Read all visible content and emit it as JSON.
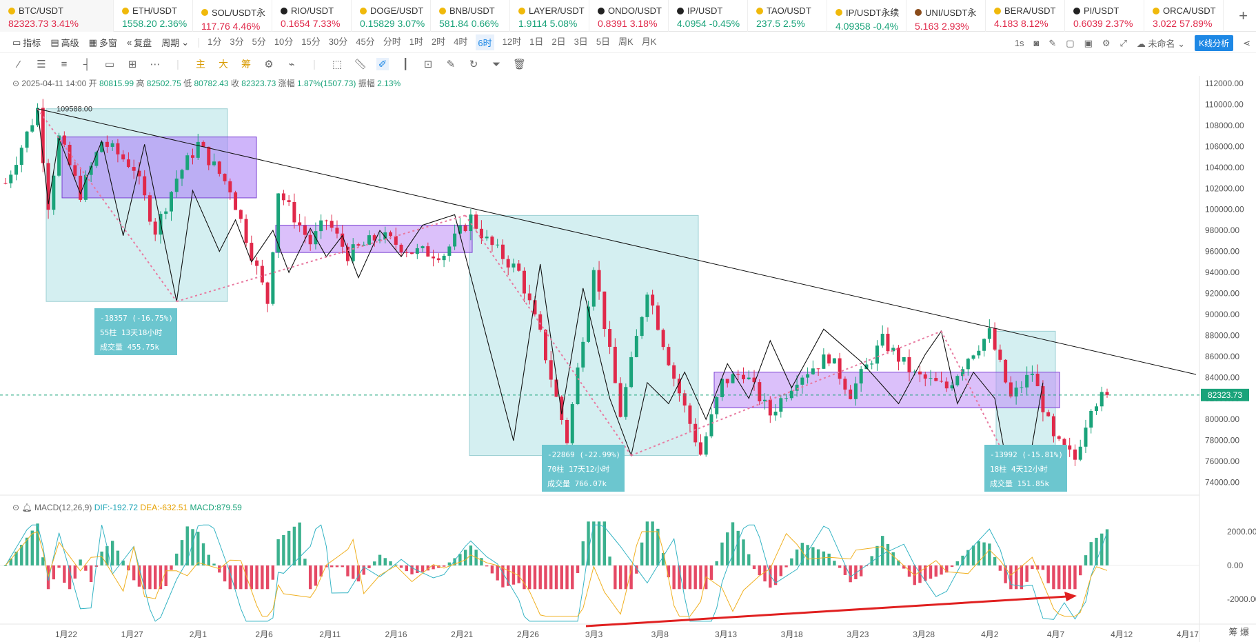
{
  "tickers": [
    {
      "symbol": "BTC/USDT",
      "price": "82323.73",
      "change": "3.41%",
      "dir": "down",
      "icon": "btc-icon",
      "active": true
    },
    {
      "symbol": "ETH/USDT",
      "price": "1558.20",
      "change": "2.36%",
      "dir": "up",
      "icon": "eth-icon"
    },
    {
      "symbol": "SOL/USDT永",
      "price": "117.76",
      "change": "4.46%",
      "dir": "down",
      "icon": "sol-icon"
    },
    {
      "symbol": "RIO/USDT",
      "price": "0.1654",
      "change": "7.33%",
      "dir": "down",
      "icon": "rio-icon"
    },
    {
      "symbol": "DOGE/USDT",
      "price": "0.15829",
      "change": "3.07%",
      "dir": "up",
      "icon": "doge-icon"
    },
    {
      "symbol": "BNB/USDT",
      "price": "581.84",
      "change": "0.66%",
      "dir": "up",
      "icon": "bnb-icon"
    },
    {
      "symbol": "LAYER/USDT",
      "price": "1.9114",
      "change": "5.08%",
      "dir": "up",
      "icon": "layer-icon"
    },
    {
      "symbol": "ONDO/USDT",
      "price": "0.8391",
      "change": "3.18%",
      "dir": "down",
      "icon": "ondo-icon"
    },
    {
      "symbol": "IP/USDT",
      "price": "4.0954",
      "change": "-0.45%",
      "dir": "up",
      "icon": "ip-icon"
    },
    {
      "symbol": "TAO/USDT",
      "price": "237.5",
      "change": "2.5%",
      "dir": "up",
      "icon": "tao-icon"
    },
    {
      "symbol": "IP/USDT永续",
      "price": "4.09358",
      "change": "-0.4%",
      "dir": "up",
      "icon": "ip-perp-icon"
    },
    {
      "symbol": "UNI/USDT永",
      "price": "5.163",
      "change": "2.93%",
      "dir": "down",
      "icon": "uni-icon"
    },
    {
      "symbol": "BERA/USDT",
      "price": "4.183",
      "change": "8.12%",
      "dir": "down",
      "icon": "bera-icon"
    },
    {
      "symbol": "PI/USDT",
      "price": "0.6039",
      "change": "2.37%",
      "dir": "down",
      "icon": "pi-icon"
    },
    {
      "symbol": "ORCA/USDT",
      "price": "3.022",
      "change": "57.89%",
      "dir": "down",
      "icon": "orca-icon"
    }
  ],
  "toolbar": {
    "indicator": "指标",
    "advanced": "高级",
    "multi_window": "多窗",
    "replay": "复盘",
    "period": "周期",
    "timeframes": [
      "1分",
      "3分",
      "5分",
      "10分",
      "15分",
      "30分",
      "45分",
      "分时",
      "1时",
      "2时",
      "4时",
      "6时",
      "12时",
      "1日",
      "2日",
      "3日",
      "5日",
      "周K",
      "月K"
    ],
    "active_timeframe": "6时",
    "interval_1s": "1s",
    "unnamed": "未命名",
    "kline_analysis": "K线分析"
  },
  "drawing_tools": {
    "main": "主",
    "big": "大",
    "chip": "筹"
  },
  "ohlc": {
    "datetime": "2025-04-11 14:00",
    "open_label": "开",
    "open": "80815.99",
    "high_label": "高",
    "high": "82502.75",
    "low_label": "低",
    "low": "80782.43",
    "close_label": "收",
    "close": "82323.73",
    "change_label": "涨幅",
    "change": "1.87%(1507.73)",
    "amp_label": "振幅",
    "amp": "2.13%"
  },
  "macd": {
    "label": "MACD(12,26,9)",
    "dif": "DIF:-192.72",
    "dea": "DEA:-632.51",
    "macd": "MACD:879.59"
  },
  "annotations": {
    "peak_label": "109588.00",
    "current_price": "82323.73",
    "m1_line1": "-18357 (-16.75%)",
    "m1_line2": "55柱 13天18小时",
    "m1_line3": "成交量 455.75k",
    "m2_line1": "-22869 (-22.99%)",
    "m2_line2": "70柱 17天12小时",
    "m2_line3": "成交量 766.07k",
    "m3_line1": "-13992 (-15.81%)",
    "m3_line2": "18柱 4天12小时",
    "m3_line3": "成交量 151.85k"
  },
  "chart_data": {
    "type": "candlestick",
    "y_ticks": [
      "112000.00",
      "110000.00",
      "108000.00",
      "106000.00",
      "104000.00",
      "102000.00",
      "100000.00",
      "98000.00",
      "96000.00",
      "94000.00",
      "92000.00",
      "90000.00",
      "88000.00",
      "86000.00",
      "84000.00",
      "82000.00",
      "80000.00",
      "78000.00",
      "76000.00",
      "74000.00"
    ],
    "x_ticks": [
      "1月22",
      "1月27",
      "2月1",
      "2月6",
      "2月11",
      "2月16",
      "2月21",
      "2月26",
      "3月3",
      "3月8",
      "3月13",
      "3月18",
      "3月23",
      "3月28",
      "4月2",
      "4月7",
      "4月12",
      "4月17"
    ],
    "macd_ticks": [
      "2000.00",
      "0.00",
      "-2000.00"
    ],
    "close_path": [
      [
        0,
        102500
      ],
      [
        3,
        106000
      ],
      [
        6,
        109588
      ],
      [
        8,
        100500
      ],
      [
        10,
        106800
      ],
      [
        14,
        101500
      ],
      [
        18,
        106500
      ],
      [
        24,
        104000
      ],
      [
        28,
        98000
      ],
      [
        32,
        103000
      ],
      [
        36,
        106200
      ],
      [
        42,
        102000
      ],
      [
        49,
        91200
      ],
      [
        51,
        101800
      ],
      [
        57,
        96800
      ],
      [
        60,
        99000
      ],
      [
        64,
        95700
      ],
      [
        70,
        97500
      ],
      [
        76,
        96000
      ],
      [
        82,
        95800
      ],
      [
        87,
        99200
      ],
      [
        90,
        97000
      ],
      [
        96,
        94000
      ],
      [
        100,
        88000
      ],
      [
        105,
        78000
      ],
      [
        110,
        94800
      ],
      [
        115,
        80500
      ],
      [
        120,
        92500
      ],
      [
        125,
        84000
      ],
      [
        130,
        76700
      ],
      [
        134,
        83500
      ],
      [
        138,
        84500
      ],
      [
        143,
        80500
      ],
      [
        148,
        84000
      ],
      [
        154,
        86000
      ],
      [
        158,
        82500
      ],
      [
        164,
        87500
      ],
      [
        170,
        84200
      ],
      [
        176,
        83000
      ],
      [
        180,
        86000
      ],
      [
        184,
        88200
      ],
      [
        188,
        82000
      ],
      [
        192,
        84500
      ],
      [
        196,
        78000
      ],
      [
        200,
        76200
      ],
      [
        203,
        81500
      ],
      [
        206,
        82323.73
      ]
    ]
  },
  "corner_text": "筹 爆"
}
